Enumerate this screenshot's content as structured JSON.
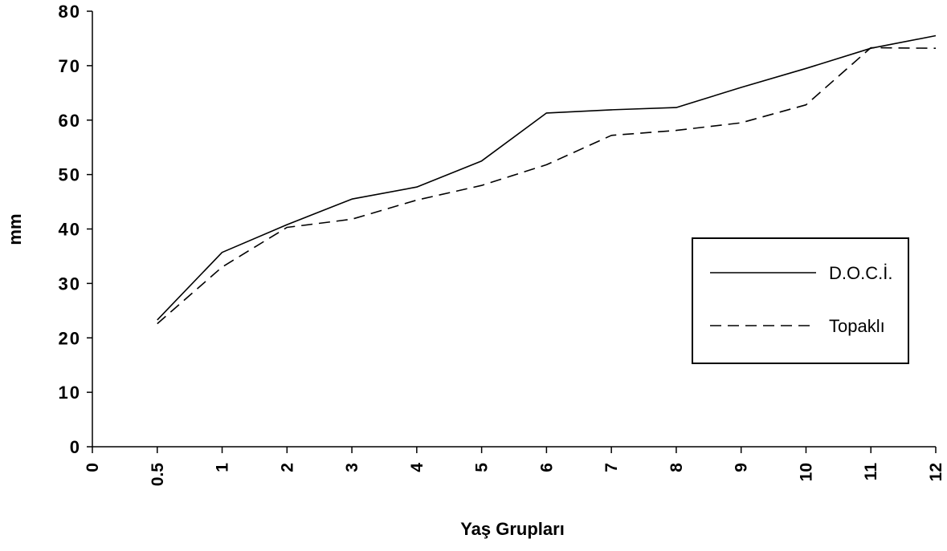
{
  "chart_data": {
    "type": "line",
    "title": "",
    "xlabel": "Yaş Grupları",
    "ylabel": "mm",
    "categories": [
      "0",
      "0.5",
      "1",
      "2",
      "3",
      "4",
      "5",
      "6",
      "7",
      "8",
      "9",
      "10",
      "11",
      "12"
    ],
    "ylim": [
      0,
      80
    ],
    "yticks": [
      0,
      10,
      20,
      30,
      40,
      50,
      60,
      70,
      80
    ],
    "series": [
      {
        "name": "D.O.C.İ.",
        "style": "solid",
        "color": "#000000",
        "values": [
          null,
          23.3,
          35.7,
          40.8,
          45.5,
          47.7,
          52.5,
          61.3,
          61.9,
          62.3,
          66.0,
          69.5,
          73.2,
          75.5
        ]
      },
      {
        "name": "Topaklı",
        "style": "dashed",
        "color": "#000000",
        "values": [
          null,
          22.6,
          33.0,
          40.3,
          41.8,
          45.3,
          48.0,
          51.8,
          57.2,
          58.1,
          59.5,
          62.8,
          73.3,
          73.2
        ]
      }
    ],
    "legend_position": "right",
    "grid": false
  }
}
